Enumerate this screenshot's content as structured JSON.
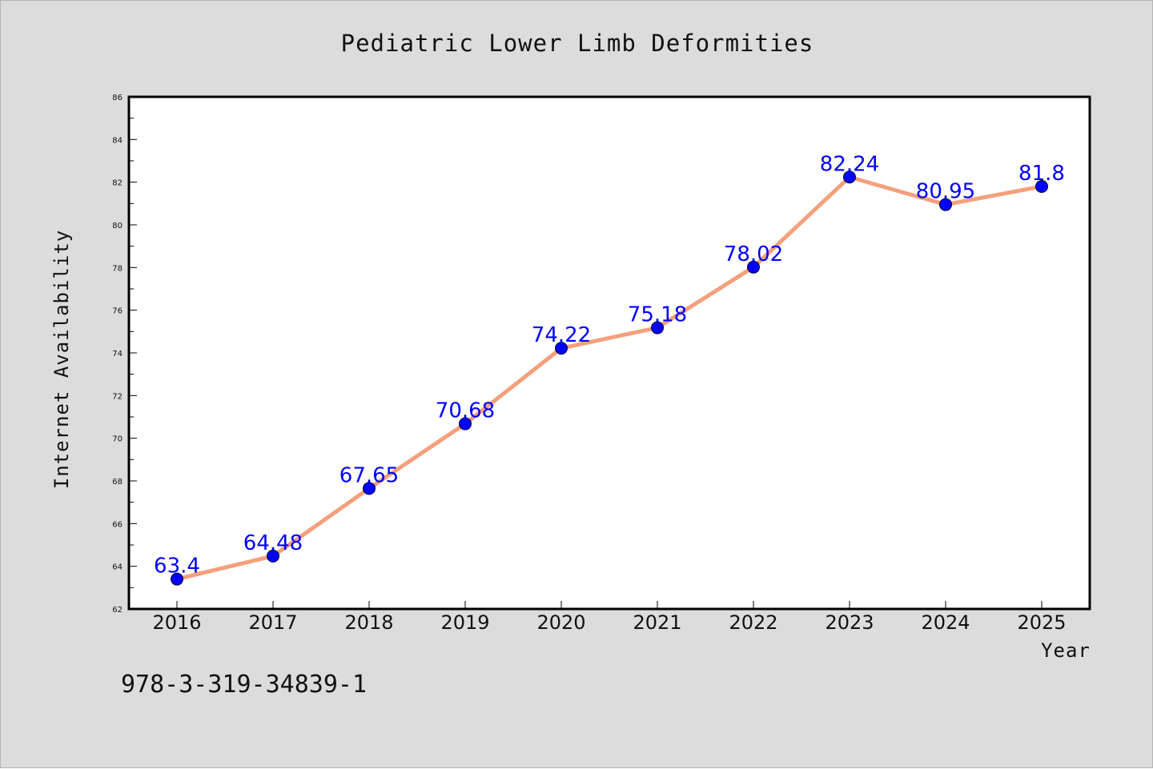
{
  "chart_data": {
    "type": "line",
    "title": "Pediatric Lower Limb Deformities",
    "xlabel": "Year",
    "ylabel": "Internet Availability",
    "categories": [
      "2016",
      "2017",
      "2018",
      "2019",
      "2020",
      "2021",
      "2022",
      "2023",
      "2024",
      "2025"
    ],
    "series": [
      {
        "values": [
          63.4,
          64.48,
          67.65,
          70.68,
          74.22,
          75.18,
          78.02,
          82.24,
          80.95,
          81.8
        ]
      }
    ],
    "data_labels": [
      "63.4",
      "64.48",
      "67.65",
      "70.68",
      "74.22",
      "75.18",
      "78.02",
      "82.24",
      "80.95",
      "81.8"
    ],
    "ylim": [
      62,
      86
    ],
    "yticks": [
      "62",
      "64",
      "66",
      "68",
      "70",
      "72",
      "74",
      "76",
      "78",
      "80",
      "82",
      "84",
      "86"
    ],
    "grid": false,
    "legend": "none",
    "colors": {
      "line": "#f4a07c",
      "marker": "#0000ff",
      "labels": "#0000ff",
      "background": "#dcdcdc",
      "plot_area": "#ffffff"
    }
  },
  "footnote": "978-3-319-34839-1"
}
